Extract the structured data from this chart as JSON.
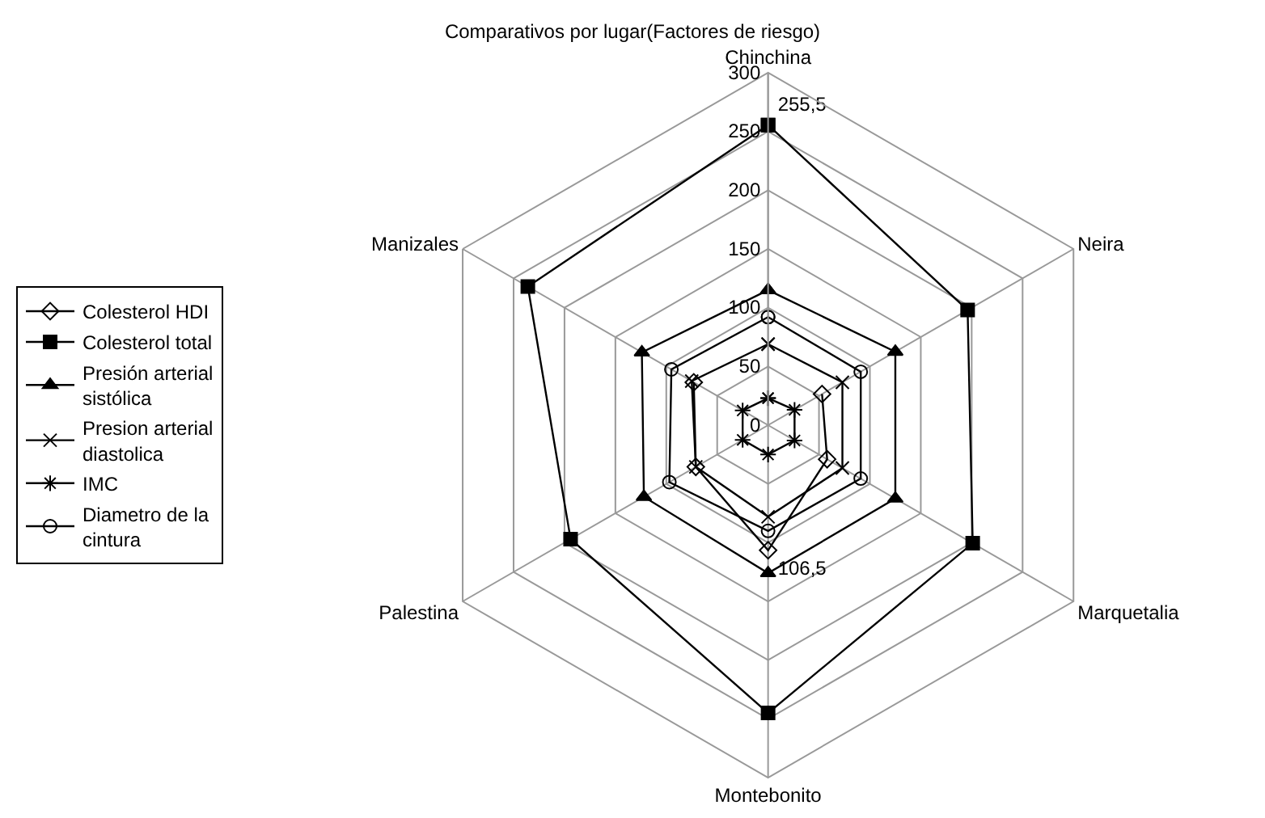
{
  "chart_data": {
    "type": "radar",
    "title": "Comparativos por lugar(Factores de riesgo)",
    "categories": [
      "Chinchina",
      "Neira",
      "Marquetalia",
      "Montebonito",
      "Palestina",
      "Manizales"
    ],
    "ylim": [
      0,
      300
    ],
    "yticks": [
      0,
      50,
      100,
      150,
      200,
      250,
      300
    ],
    "grid": true,
    "legend": "left",
    "series": [
      {
        "name": "Colesterol HDI",
        "color": "#000000",
        "marker": "diamond",
        "values": [
          null,
          53,
          58,
          106.5,
          71,
          73
        ],
        "value_labels": [
          null,
          null,
          null,
          "106,5",
          null,
          null
        ]
      },
      {
        "name": "Colesterol total",
        "color": "#000000",
        "marker": "square",
        "values": [
          255.5,
          196,
          201,
          245,
          194,
          236
        ],
        "value_labels": [
          "255,5",
          null,
          null,
          null,
          null,
          null
        ]
      },
      {
        "name": "Presión arterial sistólica",
        "color": "#000000",
        "marker": "triangle",
        "values": [
          115,
          125,
          125,
          126,
          122,
          124
        ]
      },
      {
        "name": "Presion arterial diastolica",
        "color": "#000000",
        "marker": "cross",
        "values": [
          69,
          73,
          73,
          78,
          71,
          75
        ]
      },
      {
        "name": "IMC",
        "color": "#000000",
        "marker": "star",
        "values": [
          23,
          26,
          26,
          25,
          25,
          25
        ]
      },
      {
        "name": "Diametro de la cintura",
        "color": "#000000",
        "marker": "circle",
        "values": [
          92,
          91,
          91,
          90,
          97,
          95
        ]
      }
    ]
  }
}
